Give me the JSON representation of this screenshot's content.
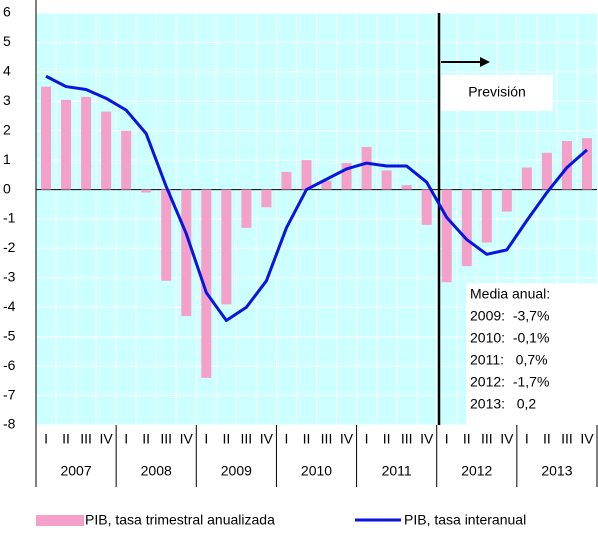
{
  "chart_data": {
    "type": "bar_line",
    "categories": [
      "I",
      "II",
      "III",
      "IV",
      "I",
      "II",
      "III",
      "IV",
      "I",
      "II",
      "III",
      "IV",
      "I",
      "II",
      "III",
      "IV",
      "I",
      "II",
      "III",
      "IV",
      "I",
      "II",
      "III",
      "IV",
      "I",
      "II",
      "III",
      "IV"
    ],
    "year_groups": [
      "2007",
      "2008",
      "2009",
      "2010",
      "2011",
      "2012",
      "2013"
    ],
    "series": [
      {
        "name": "PIB, tasa trimestral anualizada",
        "type": "bar",
        "color": "#f4a0c8",
        "values": [
          3.5,
          3.05,
          3.15,
          2.65,
          2.0,
          -0.1,
          -3.1,
          -4.3,
          -6.4,
          -3.9,
          -1.3,
          -0.6,
          0.6,
          1.0,
          0.3,
          0.9,
          1.45,
          0.65,
          0.15,
          -1.2,
          -3.15,
          -2.6,
          -1.8,
          -0.75,
          0.75,
          1.25,
          1.65,
          1.75
        ]
      },
      {
        "name": "PIB, tasa interanual",
        "type": "line",
        "color": "#0a14e0",
        "values": [
          3.85,
          3.5,
          3.4,
          3.1,
          2.7,
          1.9,
          0.1,
          -1.5,
          -3.5,
          -4.45,
          -4.0,
          -3.1,
          -1.3,
          0.0,
          0.35,
          0.7,
          0.9,
          0.8,
          0.8,
          0.25,
          -0.95,
          -1.7,
          -2.2,
          -2.05,
          -1.05,
          -0.1,
          0.75,
          1.35
        ]
      }
    ],
    "ylim": [
      -8,
      6
    ],
    "yticks": [
      -8,
      -7,
      -6,
      -5,
      -4,
      -3,
      -2,
      -1,
      0,
      1,
      2,
      3,
      4,
      5,
      6
    ],
    "grid": true,
    "forecast_label": "Previsión",
    "annotation_title": "Media anual:",
    "annotation_lines": [
      "2009:  -3,7%",
      "2010:  -0,1%",
      "2011:   0,7%",
      "2012:  -1,7%",
      "2013:   0,2"
    ]
  }
}
